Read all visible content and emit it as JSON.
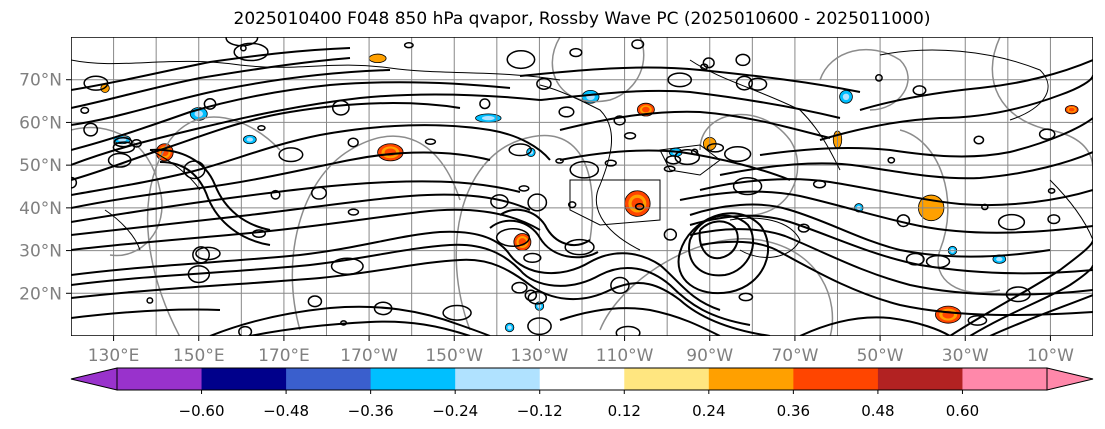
{
  "chart_data": {
    "type": "heatmap",
    "title": "2025010400 F048 850 hPa qvapor, Rossby Wave PC (2025010600 - 2025011000)",
    "y_ticks": [
      "70°N",
      "60°N",
      "50°N",
      "40°N",
      "30°N",
      "20°N"
    ],
    "y_tick_values": [
      70,
      60,
      50,
      40,
      30,
      20
    ],
    "x_ticks": [
      "130°E",
      "150°E",
      "170°E",
      "170°W",
      "150°W",
      "130°W",
      "110°W",
      "90°W",
      "70°W",
      "50°W",
      "30°W",
      "10°W"
    ],
    "x_tick_values": [
      130,
      150,
      170,
      190,
      210,
      230,
      250,
      270,
      290,
      310,
      330,
      350
    ],
    "xlim": [
      120,
      360
    ],
    "ylim": [
      10,
      80
    ],
    "grid": true,
    "colorbar": {
      "tick_labels": [
        "−0.60",
        "−0.48",
        "−0.36",
        "−0.24",
        "−0.12",
        "0.12",
        "0.24",
        "0.36",
        "0.48",
        "0.60"
      ],
      "colors": [
        "#9932cc",
        "#00008b",
        "#3a5fcd",
        "#00bfff",
        "#b0e2ff",
        "#ffffff",
        "#ffe680",
        "#ffa000",
        "#ff4500",
        "#b22222",
        "#ff88aa"
      ],
      "extend": "both"
    },
    "shaded_features": [
      {
        "lon": 195,
        "lat": 53,
        "rx": 3,
        "ry": 2,
        "level": 0.4
      },
      {
        "lon": 253,
        "lat": 41,
        "rx": 3,
        "ry": 3,
        "level": 0.42
      },
      {
        "lon": 255,
        "lat": 63,
        "rx": 2,
        "ry": 1.5,
        "level": 0.4
      },
      {
        "lon": 226,
        "lat": 32,
        "rx": 2,
        "ry": 2,
        "level": 0.4
      },
      {
        "lon": 322,
        "lat": 40,
        "rx": 3,
        "ry": 3,
        "level": 0.3
      },
      {
        "lon": 326,
        "lat": 15,
        "rx": 3,
        "ry": 2,
        "level": 0.42
      },
      {
        "lon": 128,
        "lat": 68,
        "rx": 1,
        "ry": 1,
        "level": 0.3
      },
      {
        "lon": 192,
        "lat": 75,
        "rx": 2,
        "ry": 1,
        "level": 0.3
      },
      {
        "lon": 270,
        "lat": 55,
        "rx": 1.5,
        "ry": 1.5,
        "level": 0.3
      },
      {
        "lon": 355,
        "lat": 63,
        "rx": 1.5,
        "ry": 1,
        "level": 0.4
      },
      {
        "lon": 300,
        "lat": 56,
        "rx": 1,
        "ry": 2,
        "level": 0.3
      },
      {
        "lon": 142,
        "lat": 53,
        "rx": 2,
        "ry": 2,
        "level": 0.4
      },
      {
        "lon": 132,
        "lat": 56,
        "rx": 2,
        "ry": 1,
        "level": -0.3
      },
      {
        "lon": 150,
        "lat": 62,
        "rx": 2,
        "ry": 1.5,
        "level": -0.3
      },
      {
        "lon": 162,
        "lat": 56,
        "rx": 1.5,
        "ry": 1,
        "level": -0.3
      },
      {
        "lon": 218,
        "lat": 61,
        "rx": 3,
        "ry": 1,
        "level": -0.3
      },
      {
        "lon": 242,
        "lat": 66,
        "rx": 2,
        "ry": 1.5,
        "level": -0.3
      },
      {
        "lon": 302,
        "lat": 66,
        "rx": 1.5,
        "ry": 1.5,
        "level": -0.3
      },
      {
        "lon": 228,
        "lat": 53,
        "rx": 1,
        "ry": 1,
        "level": -0.3
      },
      {
        "lon": 262,
        "lat": 53,
        "rx": 1.5,
        "ry": 1,
        "level": -0.3
      },
      {
        "lon": 305,
        "lat": 40,
        "rx": 1,
        "ry": 1,
        "level": -0.3
      },
      {
        "lon": 230,
        "lat": 17,
        "rx": 1,
        "ry": 1,
        "level": -0.3
      },
      {
        "lon": 223,
        "lat": 12,
        "rx": 1,
        "ry": 1,
        "level": -0.3
      },
      {
        "lon": 338,
        "lat": 28,
        "rx": 1.5,
        "ry": 1,
        "level": -0.3
      },
      {
        "lon": 327,
        "lat": 30,
        "rx": 1,
        "ry": 1,
        "level": -0.3
      }
    ]
  }
}
